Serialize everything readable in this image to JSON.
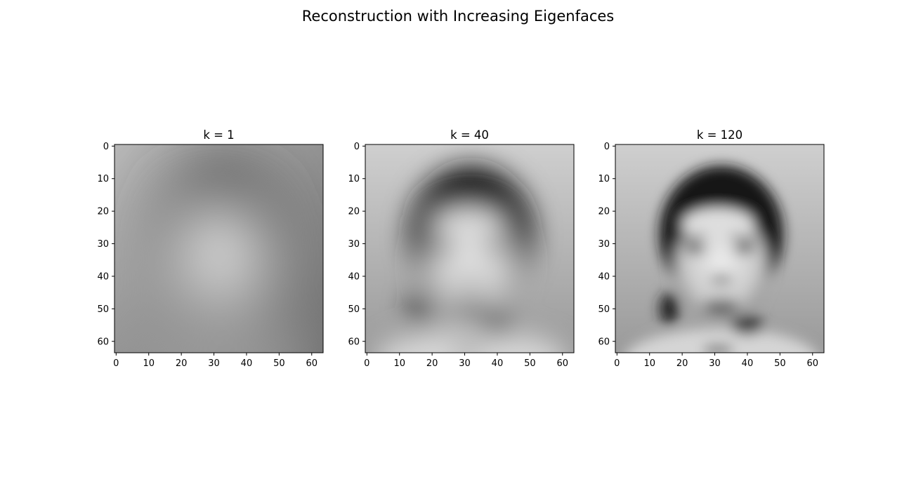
{
  "chart_data": {
    "type": "heatmap",
    "title": "Reconstruction with Increasing Eigenfaces",
    "colormap": "gray",
    "image_size": [
      64,
      64
    ],
    "xticks": [
      0,
      10,
      20,
      30,
      40,
      50,
      60
    ],
    "yticks": [
      0,
      10,
      20,
      30,
      40,
      50,
      60
    ],
    "xlim": [
      -0.5,
      63.5
    ],
    "ylim": [
      63.5,
      -0.5
    ],
    "panels": [
      {
        "title": "k = 1",
        "k": 1
      },
      {
        "title": "k = 40",
        "k": 40
      },
      {
        "title": "k = 120",
        "k": 120
      }
    ]
  }
}
